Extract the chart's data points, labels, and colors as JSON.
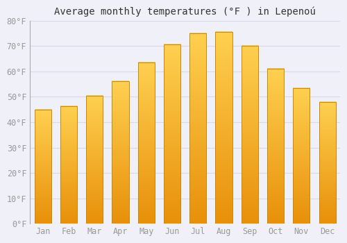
{
  "title": "Average monthly temperatures (°F ) in Lepenoú",
  "months": [
    "Jan",
    "Feb",
    "Mar",
    "Apr",
    "May",
    "Jun",
    "Jul",
    "Aug",
    "Sep",
    "Oct",
    "Nov",
    "Dec"
  ],
  "values": [
    45.0,
    46.3,
    50.5,
    56.0,
    63.5,
    70.5,
    75.0,
    75.5,
    70.0,
    61.0,
    53.5,
    48.0
  ],
  "bar_color_dark": "#E8900A",
  "bar_color_mid": "#F5A623",
  "bar_color_light": "#FFD050",
  "bar_edge_color": "#CC8800",
  "background_color": "#F0F0F8",
  "grid_color": "#D8D8E8",
  "ylim": [
    0,
    80
  ],
  "yticks": [
    0,
    10,
    20,
    30,
    40,
    50,
    60,
    70,
    80
  ],
  "ylabel_suffix": "°F",
  "title_fontsize": 10,
  "tick_fontsize": 8.5,
  "tick_color": "#999999",
  "spine_color": "#AAAAAA"
}
